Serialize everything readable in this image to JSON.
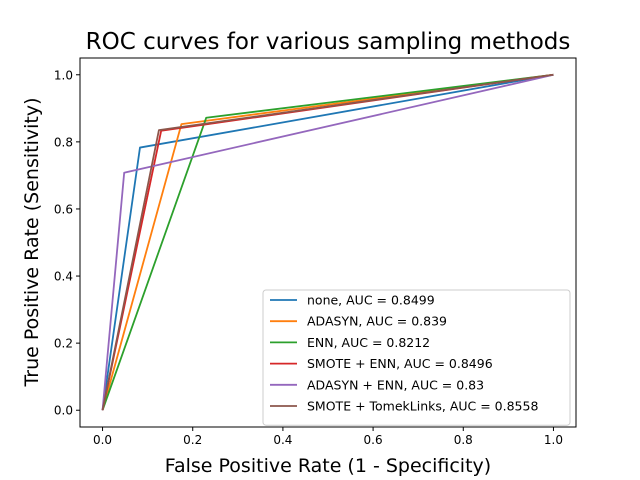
{
  "chart_data": {
    "type": "line",
    "title": "ROC curves for various sampling methods",
    "xlabel": "False Positive Rate (1 - Specificity)",
    "ylabel": "True Positive Rate (Sensitivity)",
    "xlim": [
      -0.05,
      1.05
    ],
    "ylim": [
      -0.05,
      1.05
    ],
    "xticks": [
      "0.0",
      "0.2",
      "0.4",
      "0.6",
      "0.8",
      "1.0"
    ],
    "yticks": [
      "0.0",
      "0.2",
      "0.4",
      "0.6",
      "0.8",
      "1.0"
    ],
    "grid": false,
    "legend_position": "bottom-right",
    "series": [
      {
        "name": "none, AUC = 0.8499",
        "color": "#1f77b4",
        "x": [
          0,
          0.083,
          1
        ],
        "y": [
          0,
          0.783,
          1
        ]
      },
      {
        "name": "ADASYN, AUC = 0.839",
        "color": "#ff7f0e",
        "x": [
          0,
          0.175,
          1
        ],
        "y": [
          0,
          0.853,
          1
        ]
      },
      {
        "name": "ENN, AUC = 0.8212",
        "color": "#2ca02c",
        "x": [
          0,
          0.23,
          1
        ],
        "y": [
          0,
          0.872,
          1
        ]
      },
      {
        "name": "SMOTE + ENN, AUC = 0.8496",
        "color": "#d62728",
        "x": [
          0,
          0.13,
          1
        ],
        "y": [
          0,
          0.833,
          1
        ]
      },
      {
        "name": "ADASYN + ENN, AUC = 0.83",
        "color": "#9467bd",
        "x": [
          0,
          0.048,
          1
        ],
        "y": [
          0,
          0.708,
          1
        ]
      },
      {
        "name": "SMOTE + TomekLinks, AUC = 0.8558",
        "color": "#8c564b",
        "x": [
          0,
          0.125,
          1
        ],
        "y": [
          0,
          0.835,
          1
        ]
      }
    ]
  }
}
